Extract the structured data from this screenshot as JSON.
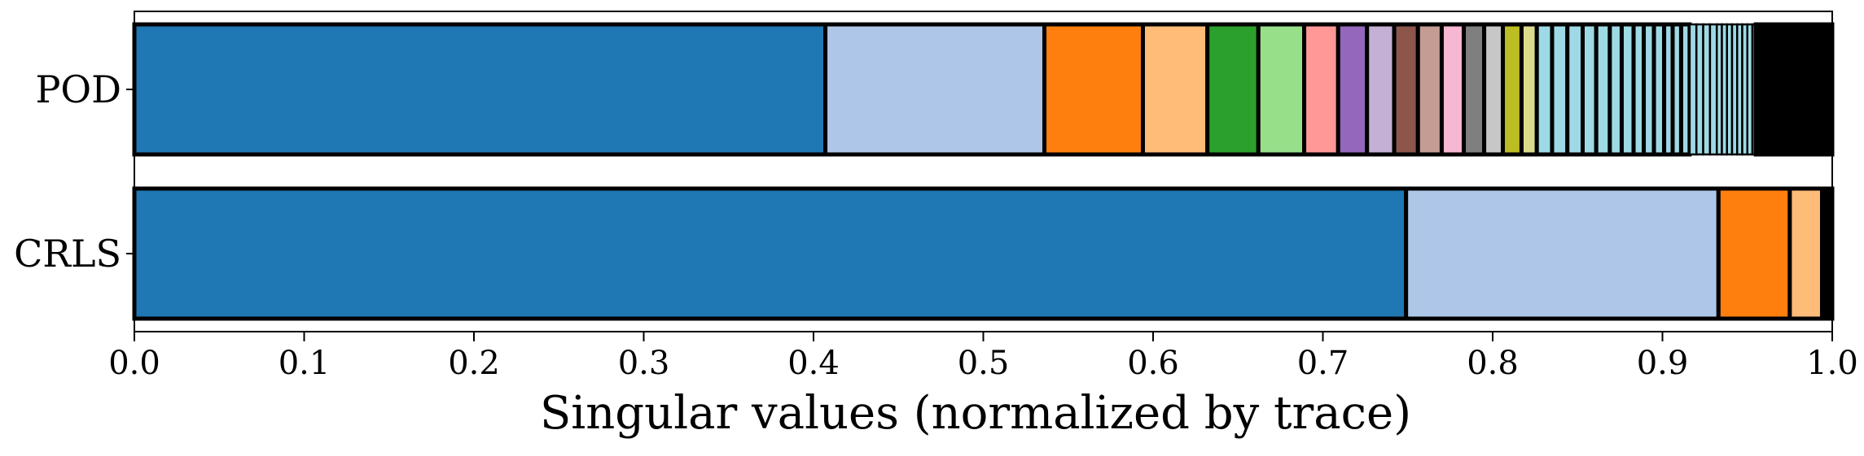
{
  "chart_data": {
    "type": "bar",
    "orientation": "horizontal-stacked",
    "xlabel": "Singular values (normalized by trace)",
    "ylabel": "",
    "title": "",
    "xlim": [
      0,
      1
    ],
    "xticks": [
      "0.0",
      "0.1",
      "0.2",
      "0.3",
      "0.4",
      "0.5",
      "0.6",
      "0.7",
      "0.8",
      "0.9",
      "1.0"
    ],
    "legend": "none",
    "grid": false,
    "rows": [
      {
        "name": "POD",
        "boundaries": [
          0.0,
          0.407,
          0.536,
          0.594,
          0.632,
          0.662,
          0.689,
          0.709,
          0.726,
          0.742,
          0.756,
          0.77,
          0.783,
          0.795,
          0.806,
          0.817,
          0.826,
          0.835,
          0.844,
          0.853,
          0.861,
          0.869,
          0.876,
          0.883,
          0.889,
          0.895,
          0.901,
          0.906,
          0.911,
          0.916,
          0.92,
          0.924,
          0.928,
          0.932,
          0.935,
          0.938,
          0.941,
          0.944,
          0.947,
          0.95,
          0.953,
          0.955,
          1.0
        ]
      },
      {
        "name": "CRLS",
        "boundaries": [
          0.0,
          0.749,
          0.933,
          0.975,
          0.994,
          1.0
        ]
      }
    ],
    "colors": [
      "#1f77b4",
      "#aec7e8",
      "#ff7f0e",
      "#ffbb78",
      "#2ca02c",
      "#98df8a",
      "#ff9896",
      "#9467bd",
      "#c5b0d5",
      "#8c564b",
      "#c49c94",
      "#f7b6d2",
      "#7f7f7f",
      "#c7c7c7",
      "#bcbd22",
      "#dbdb8d",
      "#9edae5"
    ],
    "residual_color": "#000000"
  }
}
